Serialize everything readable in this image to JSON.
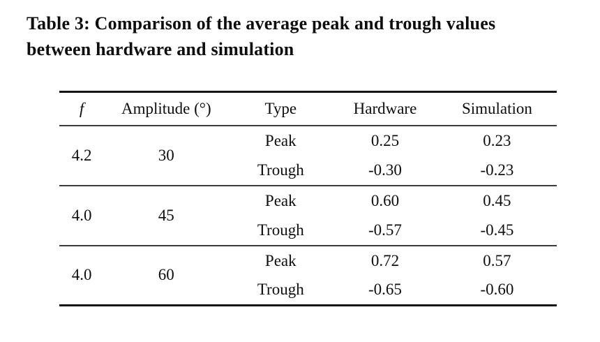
{
  "caption": {
    "line1": "Table 3: Comparison of the average peak and trough values",
    "line2": "between hardware and simulation"
  },
  "table": {
    "columns": [
      "f",
      "Amplitude (°)",
      "Type",
      "Hardware",
      "Simulation"
    ],
    "groups": [
      {
        "f": "4.2",
        "amplitude": "30",
        "rows": [
          {
            "type": "Peak",
            "hardware": "0.25",
            "simulation": "0.23"
          },
          {
            "type": "Trough",
            "hardware": "-0.30",
            "simulation": "-0.23"
          }
        ]
      },
      {
        "f": "4.0",
        "amplitude": "45",
        "rows": [
          {
            "type": "Peak",
            "hardware": "0.60",
            "simulation": "0.45"
          },
          {
            "type": "Trough",
            "hardware": "-0.57",
            "simulation": "-0.45"
          }
        ]
      },
      {
        "f": "4.0",
        "amplitude": "60",
        "rows": [
          {
            "type": "Peak",
            "hardware": "0.72",
            "simulation": "0.57"
          },
          {
            "type": "Trough",
            "hardware": "-0.65",
            "simulation": "-0.60"
          }
        ]
      }
    ]
  },
  "chart_data": {
    "type": "table",
    "title": "Table 3: Comparison of the average peak and trough values between hardware and simulation",
    "columns": [
      "f",
      "Amplitude (°)",
      "Type",
      "Hardware",
      "Simulation"
    ],
    "rows": [
      [
        "4.2",
        "30",
        "Peak",
        "0.25",
        "0.23"
      ],
      [
        "4.2",
        "30",
        "Trough",
        "-0.30",
        "-0.23"
      ],
      [
        "4.0",
        "45",
        "Peak",
        "0.60",
        "0.45"
      ],
      [
        "4.0",
        "45",
        "Trough",
        "-0.57",
        "-0.45"
      ],
      [
        "4.0",
        "60",
        "Peak",
        "0.72",
        "0.57"
      ],
      [
        "4.0",
        "60",
        "Trough",
        "-0.65",
        "-0.60"
      ]
    ]
  },
  "colors": {
    "background": "#ffffff",
    "text": "#0e0e0e",
    "rule_heavy": "#151515",
    "rule_light": "#3c3c3c"
  }
}
